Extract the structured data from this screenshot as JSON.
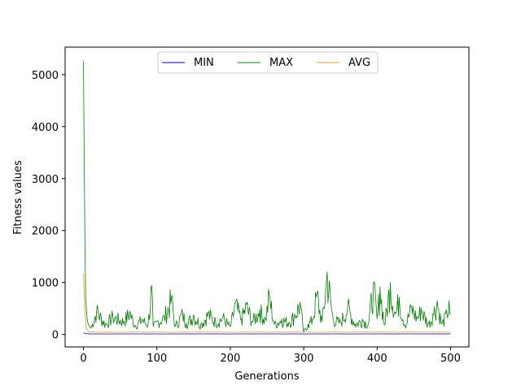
{
  "chart_data": {
    "type": "line",
    "xlabel": "Generations",
    "ylabel": "Fitness values",
    "xlim": [
      -25,
      525
    ],
    "ylim": [
      -240,
      5530
    ],
    "x_ticks": [
      0,
      100,
      200,
      300,
      400,
      500
    ],
    "y_ticks": [
      0,
      1000,
      2000,
      3000,
      4000,
      5000
    ],
    "grid": false,
    "legend_position": "top-center",
    "x": {
      "start": 0,
      "end": 500,
      "step": 1
    },
    "series": [
      {
        "name": "MIN",
        "color": "#0000cc",
        "values_keyframes": [
          [
            0,
            30
          ],
          [
            3,
            18
          ],
          [
            6,
            12
          ],
          [
            10,
            10
          ],
          [
            500,
            10
          ]
        ]
      },
      {
        "name": "MAX",
        "color": "#008000",
        "values_keyframes": [
          [
            0,
            5260
          ],
          [
            1,
            3400
          ],
          [
            2,
            1700
          ],
          [
            3,
            700
          ],
          [
            4,
            480
          ],
          [
            5,
            300
          ],
          [
            6,
            220
          ],
          [
            8,
            160
          ],
          [
            10,
            120
          ],
          [
            18,
            480
          ],
          [
            30,
            200
          ],
          [
            40,
            360
          ],
          [
            55,
            260
          ],
          [
            63,
            450
          ],
          [
            70,
            180
          ],
          [
            80,
            300
          ],
          [
            88,
            200
          ],
          [
            93,
            940
          ],
          [
            95,
            150
          ],
          [
            100,
            250
          ],
          [
            110,
            340
          ],
          [
            120,
            720
          ],
          [
            125,
            160
          ],
          [
            135,
            420
          ],
          [
            140,
            220
          ],
          [
            150,
            380
          ],
          [
            160,
            200
          ],
          [
            170,
            420
          ],
          [
            180,
            250
          ],
          [
            190,
            340
          ],
          [
            200,
            150
          ],
          [
            207,
            610
          ],
          [
            215,
            300
          ],
          [
            222,
            580
          ],
          [
            230,
            260
          ],
          [
            240,
            480
          ],
          [
            248,
            300
          ],
          [
            253,
            780
          ],
          [
            260,
            200
          ],
          [
            270,
            300
          ],
          [
            280,
            240
          ],
          [
            287,
            380
          ],
          [
            295,
            620
          ],
          [
            300,
            50
          ],
          [
            306,
            200
          ],
          [
            312,
            300
          ],
          [
            318,
            800
          ],
          [
            325,
            250
          ],
          [
            332,
            1200
          ],
          [
            340,
            300
          ],
          [
            350,
            240
          ],
          [
            360,
            550
          ],
          [
            370,
            200
          ],
          [
            380,
            300
          ],
          [
            388,
            200
          ],
          [
            395,
            980
          ],
          [
            400,
            300
          ],
          [
            404,
            920
          ],
          [
            410,
            180
          ],
          [
            418,
            1000
          ],
          [
            425,
            400
          ],
          [
            430,
            720
          ],
          [
            438,
            180
          ],
          [
            447,
            540
          ],
          [
            455,
            320
          ],
          [
            460,
            510
          ],
          [
            470,
            200
          ],
          [
            476,
            400
          ],
          [
            482,
            650
          ],
          [
            488,
            200
          ],
          [
            495,
            400
          ],
          [
            498,
            650
          ],
          [
            500,
            380
          ]
        ]
      },
      {
        "name": "AVG",
        "color": "#e8a020",
        "values_keyframes": [
          [
            0,
            1180
          ],
          [
            1,
            700
          ],
          [
            2,
            450
          ],
          [
            3,
            250
          ],
          [
            4,
            120
          ],
          [
            5,
            80
          ],
          [
            7,
            60
          ],
          [
            10,
            45
          ],
          [
            500,
            45
          ]
        ]
      }
    ]
  },
  "legend": {
    "items": [
      "MIN",
      "MAX",
      "AVG"
    ]
  }
}
